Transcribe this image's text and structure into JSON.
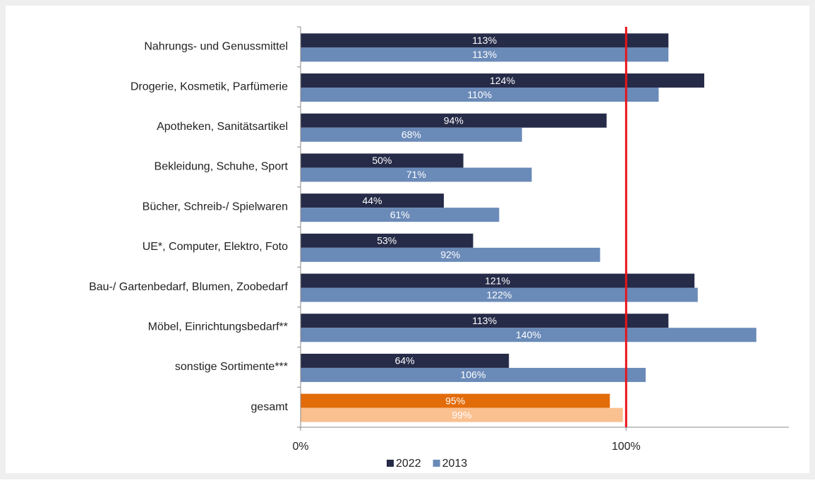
{
  "chart_data": {
    "type": "hbar",
    "categories": [
      "Nahrungs- und Genussmittel",
      "Drogerie, Kosmetik, Parfümerie",
      "Apotheken, Sanitätsartikel",
      "Bekleidung, Schuhe, Sport",
      "Bücher, Schreib-/ Spielwaren",
      "UE*, Computer, Elektro, Foto",
      "Bau-/ Gartenbedarf, Blumen, Zoobedarf",
      "Möbel, Einrichtungsbedarf**",
      "sonstige Sortimente***",
      "gesamt"
    ],
    "series": [
      {
        "name": "2022",
        "color": "#262b48",
        "colors": [
          "#262b48",
          "#262b48",
          "#262b48",
          "#262b48",
          "#262b48",
          "#262b48",
          "#262b48",
          "#262b48",
          "#262b48",
          "#e36c0a"
        ],
        "values": [
          113,
          124,
          94,
          50,
          44,
          53,
          121,
          113,
          64,
          95
        ],
        "value_labels": [
          "113%",
          "124%",
          "94%",
          "50%",
          "44%",
          "53%",
          "121%",
          "113%",
          "64%",
          "95%"
        ]
      },
      {
        "name": "2013",
        "color": "#6a8ab8",
        "colors": [
          "#6a8ab8",
          "#6a8ab8",
          "#6a8ab8",
          "#6a8ab8",
          "#6a8ab8",
          "#6a8ab8",
          "#6a8ab8",
          "#6a8ab8",
          "#6a8ab8",
          "#fac090"
        ],
        "values": [
          113,
          110,
          68,
          71,
          61,
          92,
          122,
          140,
          106,
          99
        ],
        "value_labels": [
          "113%",
          "110%",
          "68%",
          "71%",
          "61%",
          "92%",
          "122%",
          "140%",
          "106%",
          "99%"
        ]
      }
    ],
    "xlim": [
      0,
      150
    ],
    "xticks": [
      {
        "value": 0,
        "label": "0%"
      },
      {
        "value": 100,
        "label": "100%"
      }
    ],
    "reference_line": 100,
    "reference_color": "#e8151b",
    "legend": "bottom"
  }
}
